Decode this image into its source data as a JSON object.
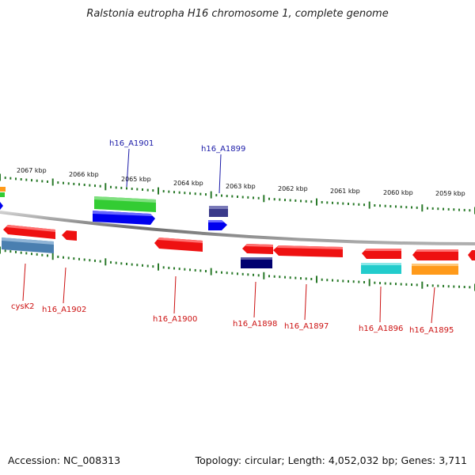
{
  "title": "Ralstonia eutropha H16 chromosome 1, complete genome",
  "footer": {
    "accession": "Accession: NC_008313",
    "summary": "Topology: circular; Length: 4,052,032 bp; Genes: 3,711"
  },
  "kbp_labels": [
    "2067 kbp",
    "2066 kbp",
    "2065 kbp",
    "2064 kbp",
    "2063 kbp",
    "2062 kbp",
    "2061 kbp",
    "2060 kbp",
    "2059 kbp"
  ],
  "gene_labels": {
    "top": [
      "h16_A1901",
      "h16_A1899"
    ],
    "bottom": [
      "cysK2",
      "h16_A1902",
      "h16_A1900",
      "h16_A1898",
      "h16_A1897",
      "h16_A1896",
      "h16_A1895"
    ]
  },
  "colors": {
    "forward_label": "#1a1aa8",
    "reverse_label": "#cc1111",
    "tick": "#2a7a2a",
    "backbone": "#8a8a8a"
  }
}
